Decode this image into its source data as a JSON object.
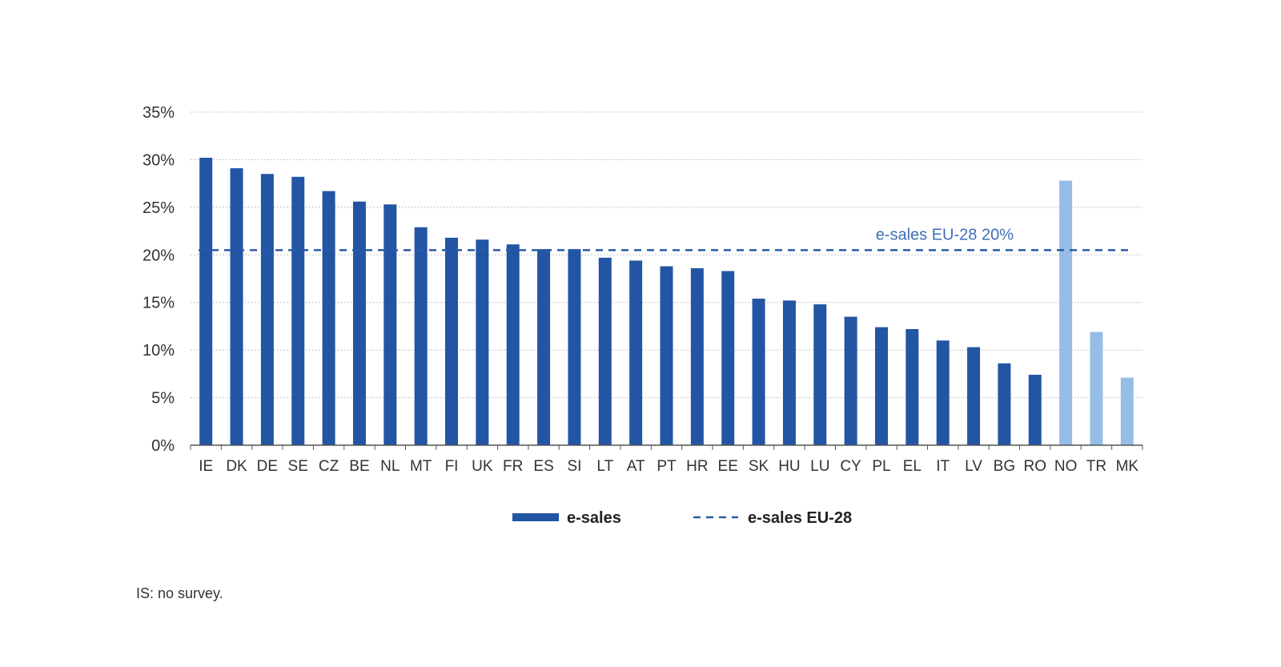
{
  "chart_data": {
    "type": "bar",
    "categories": [
      "IE",
      "DK",
      "DE",
      "SE",
      "CZ",
      "BE",
      "NL",
      "MT",
      "FI",
      "UK",
      "FR",
      "ES",
      "SI",
      "LT",
      "AT",
      "PT",
      "HR",
      "EE",
      "SK",
      "HU",
      "LU",
      "CY",
      "PL",
      "EL",
      "IT",
      "LV",
      "BG",
      "RO",
      "NO",
      "TR",
      "MK"
    ],
    "series": [
      {
        "name": "e-sales",
        "values": [
          30.2,
          29.1,
          28.5,
          28.2,
          26.7,
          25.6,
          25.3,
          22.9,
          21.8,
          21.6,
          21.1,
          20.6,
          20.6,
          19.7,
          19.4,
          18.8,
          18.6,
          18.3,
          15.4,
          15.2,
          14.8,
          13.5,
          12.4,
          12.2,
          11.0,
          10.3,
          8.6,
          7.4,
          27.8,
          11.9,
          7.1
        ]
      }
    ],
    "non_eu_categories": [
      "NO",
      "TR",
      "MK"
    ],
    "reference_line": {
      "name": "e-sales EU-28",
      "value": 20.5,
      "label": "e-sales EU-28 20%"
    },
    "ylim": [
      0,
      35
    ],
    "yticks": [
      0,
      5,
      10,
      15,
      20,
      25,
      30,
      35
    ],
    "ytick_labels": [
      "0%",
      "5%",
      "10%",
      "15%",
      "20%",
      "25%",
      "30%",
      "35%"
    ],
    "grid": "horizontal dotted",
    "legend_position": "bottom",
    "legend": {
      "bar_label": "e-sales",
      "line_label": "e-sales EU-28"
    },
    "xlabel": "",
    "ylabel": "",
    "title": ""
  },
  "colors": {
    "eu_bar": "#2255a4",
    "non_eu_bar": "#96bde6",
    "reference_line": "#2a5aa8",
    "reference_label": "#3e6fb8",
    "grid": "#c4c4c4",
    "axis": "#555555"
  },
  "footnote": "IS: no survey."
}
